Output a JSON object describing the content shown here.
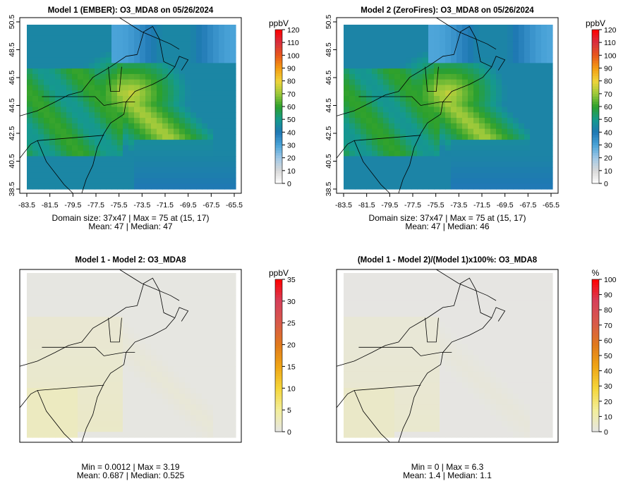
{
  "panels": [
    {
      "title": "Model 1 (EMBER): O3_MDA8 on 05/26/2024",
      "unit": "ppbV",
      "colorbar_ticks": [
        "0",
        "10",
        "20",
        "30",
        "40",
        "50",
        "60",
        "70",
        "80",
        "90",
        "100",
        "110",
        "120"
      ],
      "y_ticks": [
        "38.5",
        "40.5",
        "42.5",
        "44.5",
        "46.5",
        "48.5",
        "50.5"
      ],
      "x_ticks": [
        "-83.5",
        "-81.5",
        "-79.5",
        "-77.5",
        "-75.5",
        "-73.5",
        "-71.5",
        "-69.5",
        "-67.5",
        "-65.5"
      ],
      "stats_line1": "Domain size: 37x47 | Max = 75 at (15, 17)",
      "stats_line2": "Mean: 47 |  Median: 47",
      "field": "ozone"
    },
    {
      "title": "Model 2 (ZeroFires): O3_MDA8 on 05/26/2024",
      "unit": "ppbV",
      "colorbar_ticks": [
        "0",
        "10",
        "20",
        "30",
        "40",
        "50",
        "60",
        "70",
        "80",
        "90",
        "100",
        "110",
        "120"
      ],
      "y_ticks": [
        "38.5",
        "40.5",
        "42.5",
        "44.5",
        "46.5",
        "48.5",
        "50.5"
      ],
      "x_ticks": [
        "-83.5",
        "-81.5",
        "-79.5",
        "-77.5",
        "-75.5",
        "-73.5",
        "-71.5",
        "-69.5",
        "-67.5",
        "-65.5"
      ],
      "stats_line1": "Domain size: 37x47 | Max = 75 at (15, 17)",
      "stats_line2": "Mean: 47 |  Median: 46",
      "field": "ozone"
    },
    {
      "title": "Model 1 - Model 2: O3_MDA8",
      "unit": "ppbV",
      "colorbar_ticks": [
        "0",
        "5",
        "10",
        "15",
        "20",
        "25",
        "30",
        "35"
      ],
      "y_ticks": [],
      "x_ticks": [],
      "stats_line1": "Min = 0.0012 | Max = 3.19",
      "stats_line2": "Mean: 0.687 |  Median: 0.525",
      "field": "difference"
    },
    {
      "title": "(Model 1 - Model 2)/(Model 1)x100%: O3_MDA8",
      "unit": "%",
      "colorbar_ticks": [
        "0",
        "10",
        "20",
        "30",
        "40",
        "50",
        "60",
        "70",
        "80",
        "90",
        "100"
      ],
      "y_ticks": [],
      "x_ticks": [],
      "stats_line1": "Min = 0 | Max = 6.3",
      "stats_line2": "Mean: 1.4 |  Median: 1.1",
      "field": "percent"
    }
  ],
  "colors": {
    "ozone_scale": [
      "#ffffff",
      "#d9d9d9",
      "#a0c8e6",
      "#4aa3d8",
      "#1f78b4",
      "#159a8c",
      "#2ca02c",
      "#9cc93a",
      "#f0d43a",
      "#f39c12",
      "#e8581c",
      "#d7303f",
      "#ff0000"
    ],
    "diff_scale": [
      "#e5e5e5",
      "#f3ee9a",
      "#f5d63a",
      "#efa515",
      "#e07a1c",
      "#d85a4a",
      "#d6405a",
      "#ff0000"
    ],
    "map_bg": "#e6e6e6",
    "boundary": "#000000"
  }
}
